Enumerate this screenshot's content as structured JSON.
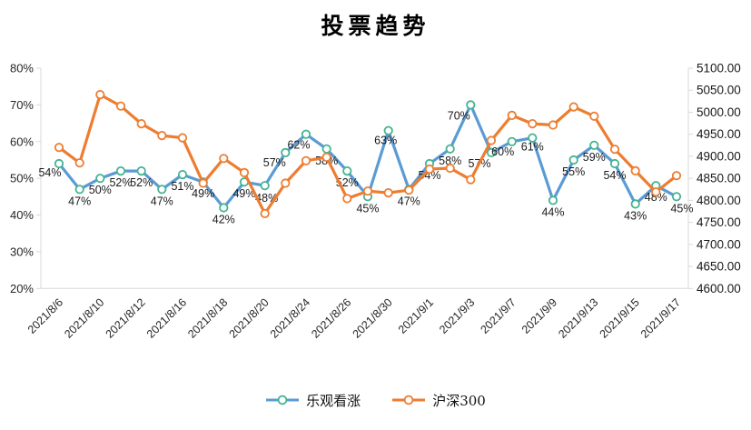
{
  "chart_data": {
    "type": "line",
    "title": "投票趋势",
    "x_tick_labels": [
      "2021/8/6",
      "2021/8/10",
      "2021/8/12",
      "2021/8/16",
      "2021/8/18",
      "2021/8/20",
      "2021/8/24",
      "2021/8/26",
      "2021/8/30",
      "2021/9/1",
      "2021/9/3",
      "2021/9/7",
      "2021/9/9",
      "2021/9/13",
      "2021/9/15",
      "2021/9/17"
    ],
    "points_per_label": 2,
    "n_points": 31,
    "grid": false,
    "legend_position": "bottom",
    "left_axis": {
      "min": 20,
      "max": 80,
      "step": 10,
      "format": "percent",
      "tick_labels": [
        "80%",
        "70%",
        "60%",
        "50%",
        "40%",
        "30%",
        "20%"
      ]
    },
    "right_axis": {
      "min": 4600,
      "max": 5100,
      "step": 50,
      "format": "number",
      "tick_labels": [
        "5100.00",
        "5050.00",
        "5000.00",
        "4950.00",
        "4900.00",
        "4850.00",
        "4800.00",
        "4750.00",
        "4700.00",
        "4650.00",
        "4600.00"
      ]
    },
    "series": [
      {
        "name": "乐观看涨",
        "axis": "left",
        "line_color": "#5B9BD5",
        "marker_color": "#44B392",
        "show_data_labels": true,
        "label_suffix": "%",
        "values": [
          54,
          47,
          50,
          52,
          52,
          47,
          51,
          49,
          42,
          49,
          48,
          57,
          62,
          58,
          52,
          45,
          63,
          47,
          54,
          58,
          70,
          57,
          60,
          61,
          44,
          55,
          59,
          54,
          43,
          48,
          45
        ]
      },
      {
        "name": "沪深300",
        "axis": "right",
        "line_color": "#ED7D31",
        "marker_color": "#ED7D31",
        "show_data_labels": false,
        "label_suffix": "",
        "values": [
          4920,
          4885,
          5040,
          5014,
          4974,
          4947,
          4942,
          4839,
          4895,
          4863,
          4770,
          4839,
          4890,
          4898,
          4804,
          4821,
          4817,
          4823,
          4871,
          4873,
          4847,
          4936,
          4993,
          4974,
          4971,
          5012,
          4991,
          4916,
          4867,
          4819,
          4856
        ]
      }
    ],
    "colors": {
      "axis_line": "#D9D9D9",
      "tick_text": "#262626",
      "data_label_text": "#1a1a1a"
    }
  }
}
